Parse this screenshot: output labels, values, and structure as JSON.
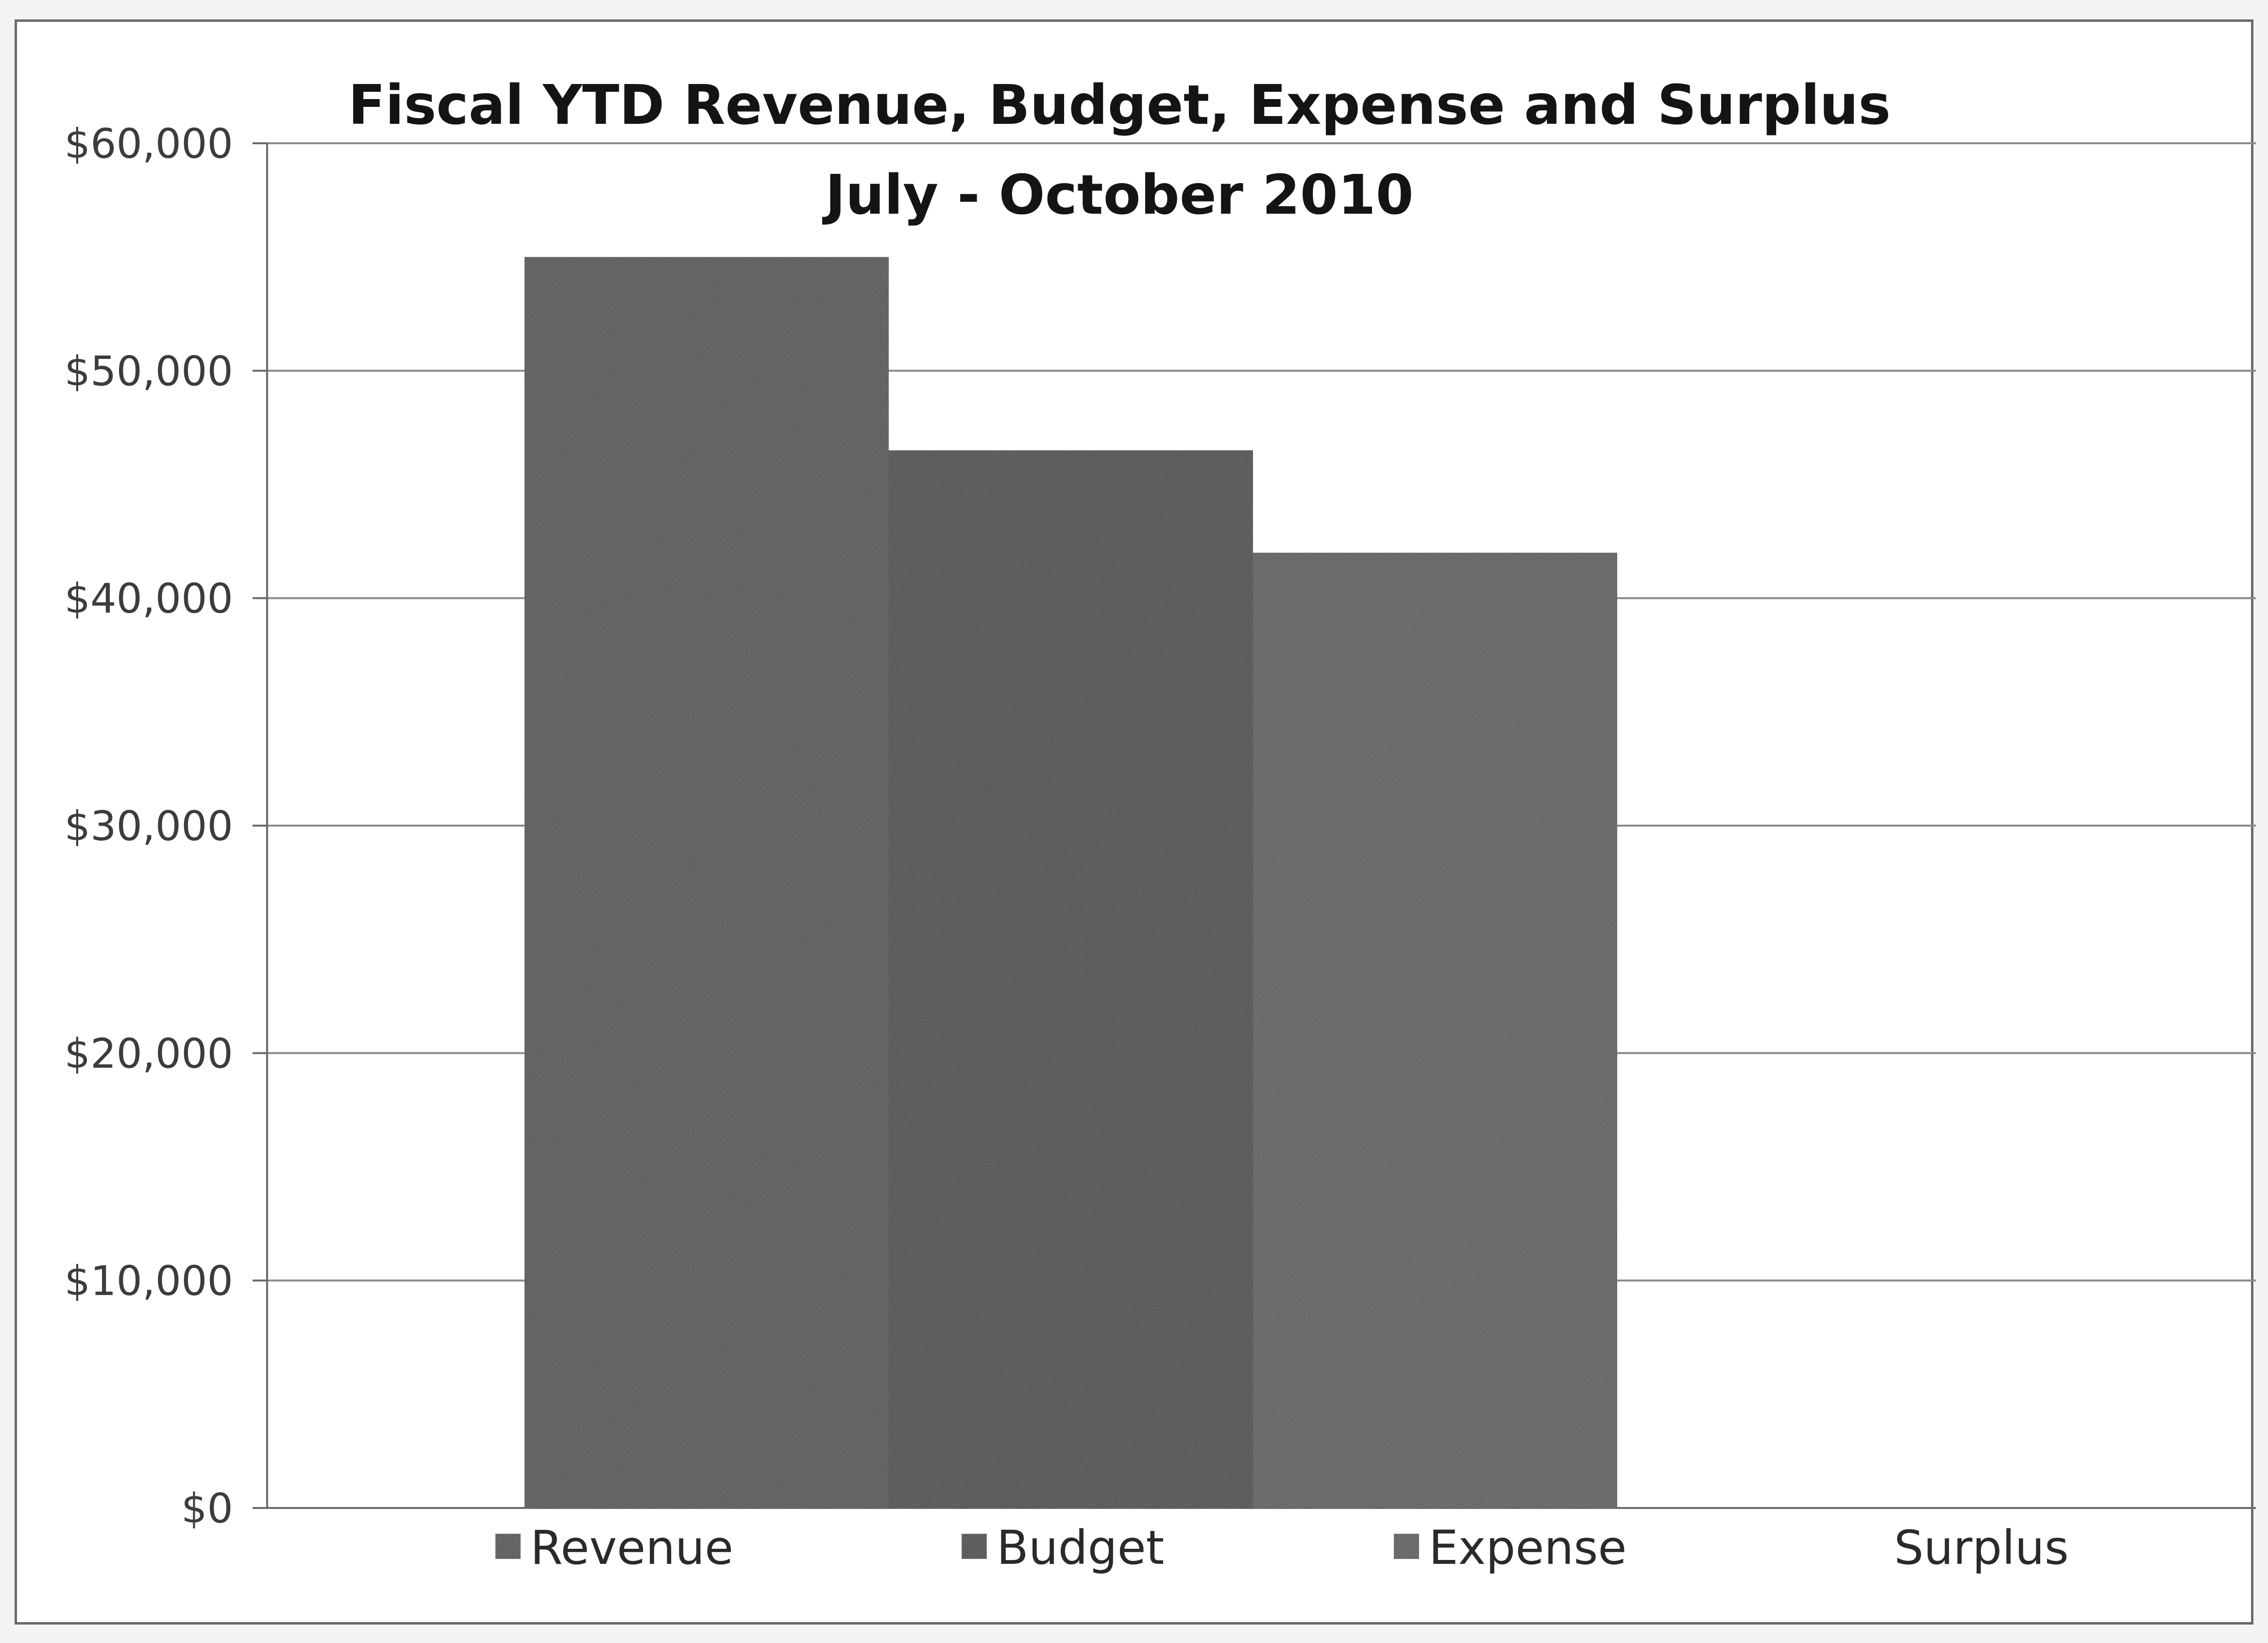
{
  "chart_data": {
    "type": "bar",
    "title": "Fiscal YTD Revenue, Budget, Expense and Surplus",
    "subtitle": "July - October 2010",
    "categories": [
      "Revenue",
      "Budget",
      "Expense",
      "Surplus"
    ],
    "values": [
      55000,
      46500,
      42000,
      0
    ],
    "ylim": [
      0,
      60000
    ],
    "yticks": [
      0,
      10000,
      20000,
      30000,
      40000,
      50000,
      60000
    ],
    "ytick_labels": [
      "$0",
      "$10,000",
      "$20,000",
      "$30,000",
      "$40,000",
      "$50,000",
      "$60,000"
    ],
    "legend": [
      {
        "name": "Revenue",
        "color": "#3d3d3d"
      },
      {
        "name": "Budget",
        "color": "#2f2f2f"
      },
      {
        "name": "Expense",
        "color": "#4a4a4a"
      },
      {
        "name": "Surplus",
        "color": null
      }
    ],
    "legend_position": "bottom",
    "grid": true,
    "bar_colors": [
      "#3d3d3d",
      "#2f2f2f",
      "#4a4a4a",
      "#555555"
    ]
  }
}
